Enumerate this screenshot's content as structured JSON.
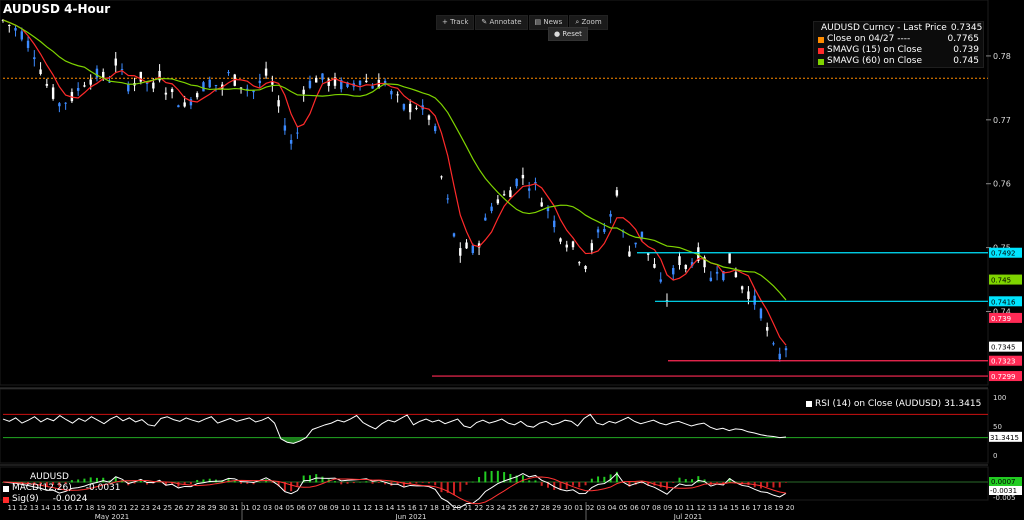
{
  "header": {
    "title": "AUDUSD 4-Hour"
  },
  "toolbar": {
    "track": "Track",
    "annotate": "Annotate",
    "news": "News",
    "zoom": "Zoom",
    "reset": "Reset"
  },
  "legend": [
    {
      "label": "AUDUSD Curncy - Last Price",
      "value": "0.7345",
      "color": "#ffffff"
    },
    {
      "label": "Close on 04/27 ----",
      "value": "0.7765",
      "color": "#ff8c00"
    },
    {
      "label": "SMAVG (15)  on Close",
      "value": "0.739",
      "color": "#ff2a2a"
    },
    {
      "label": "SMAVG (60)  on Close",
      "value": "0.745",
      "color": "#7fd400"
    }
  ],
  "rsi": {
    "label": "RSI (14)  on Close (AUDUSD)",
    "value": "31.3415",
    "ticks": [
      "100",
      "50",
      "0"
    ]
  },
  "macd": {
    "symbol": "AUDUSD",
    "macd_label": "MACD(12,26)",
    "macd_value": "-0.0031",
    "sig_label": "Sig(9)",
    "sig_value": "-0.0024",
    "tag_value": "-0.0031",
    "tag_value2": "0.0007",
    "tick_low": "-0.005"
  },
  "chart_data": {
    "type": "candlestick",
    "title": "AUDUSD 4-Hour",
    "ylim": [
      0.7285,
      0.7875
    ],
    "y_ticks": [
      "0.78",
      "0.77",
      "0.76",
      "0.75",
      "0.74"
    ],
    "x_ticks": [
      "11",
      "12",
      "13",
      "14",
      "15",
      "16",
      "17",
      "18",
      "19",
      "20",
      "21",
      "22",
      "23",
      "24",
      "25",
      "26",
      "27",
      "28",
      "29",
      "30",
      "31",
      "01",
      "02",
      "03",
      "04",
      "05",
      "06",
      "07",
      "08",
      "09",
      "10",
      "11",
      "12",
      "13",
      "14",
      "15",
      "16",
      "17",
      "18",
      "19",
      "20",
      "21",
      "22",
      "23",
      "24",
      "25",
      "26",
      "27",
      "28",
      "29",
      "30",
      "01",
      "02",
      "03",
      "04",
      "05",
      "06",
      "07",
      "08",
      "09",
      "10",
      "11",
      "12",
      "13",
      "14",
      "15",
      "16",
      "17",
      "18",
      "19",
      "20"
    ],
    "month_labels": [
      "May 2021",
      "Jun 2021",
      "Jul 2021"
    ],
    "last_price": 0.7345,
    "reference_close": 0.7765,
    "horizontal_levels": [
      {
        "value": 0.7492,
        "label": "0.7492",
        "color": "#00e5ff"
      },
      {
        "value": 0.7416,
        "label": "0.7416",
        "color": "#00e5ff"
      },
      {
        "value": 0.7323,
        "label": "0.7323",
        "color": "#ff2a55"
      },
      {
        "value": 0.7299,
        "label": "0.7299",
        "color": "#ff2a55"
      }
    ],
    "axis_tags": [
      {
        "value": 0.745,
        "label": "0.745",
        "color": "#7fd400"
      },
      {
        "value": 0.739,
        "label": "0.739",
        "color": "#ff2a55"
      },
      {
        "value": 0.7345,
        "label": "0.7345",
        "color": "#ffffff"
      }
    ],
    "price_path": [
      [
        0,
        0.7855
      ],
      [
        3,
        0.7835
      ],
      [
        5,
        0.7805
      ],
      [
        7,
        0.7755
      ],
      [
        9,
        0.7725
      ],
      [
        11,
        0.7735
      ],
      [
        13,
        0.776
      ],
      [
        15,
        0.777
      ],
      [
        17,
        0.7765
      ],
      [
        18,
        0.779
      ],
      [
        19,
        0.777
      ],
      [
        20,
        0.7755
      ],
      [
        22,
        0.7765
      ],
      [
        24,
        0.775
      ],
      [
        25,
        0.777
      ],
      [
        26,
        0.775
      ],
      [
        28,
        0.773
      ],
      [
        29,
        0.772
      ],
      [
        31,
        0.7745
      ],
      [
        33,
        0.776
      ],
      [
        35,
        0.775
      ],
      [
        36,
        0.777
      ],
      [
        38,
        0.7755
      ],
      [
        40,
        0.7745
      ],
      [
        42,
        0.777
      ],
      [
        43,
        0.7755
      ],
      [
        44,
        0.772
      ],
      [
        46,
        0.7665
      ],
      [
        47,
        0.768
      ],
      [
        48,
        0.775
      ],
      [
        50,
        0.7765
      ],
      [
        52,
        0.776
      ],
      [
        54,
        0.7755
      ],
      [
        55,
        0.775
      ],
      [
        57,
        0.7765
      ],
      [
        59,
        0.7755
      ],
      [
        61,
        0.776
      ],
      [
        62,
        0.774
      ],
      [
        63,
        0.773
      ],
      [
        64,
        0.7718
      ],
      [
        66,
        0.7722
      ],
      [
        68,
        0.7705
      ],
      [
        69,
        0.768
      ],
      [
        70,
        0.761
      ],
      [
        71,
        0.757
      ],
      [
        72,
        0.752
      ],
      [
        73,
        0.749
      ],
      [
        74,
        0.75
      ],
      [
        75,
        0.7495
      ],
      [
        76,
        0.751
      ],
      [
        77,
        0.754
      ],
      [
        78,
        0.7565
      ],
      [
        79,
        0.7575
      ],
      [
        80,
        0.758
      ],
      [
        81,
        0.759
      ],
      [
        82,
        0.7605
      ],
      [
        83,
        0.761
      ],
      [
        84,
        0.76
      ],
      [
        85,
        0.7595
      ],
      [
        86,
        0.7575
      ],
      [
        87,
        0.756
      ],
      [
        88,
        0.754
      ],
      [
        89,
        0.752
      ],
      [
        90,
        0.751
      ],
      [
        91,
        0.75
      ],
      [
        92,
        0.7485
      ],
      [
        93,
        0.7475
      ],
      [
        94,
        0.75
      ],
      [
        95,
        0.752
      ],
      [
        96,
        0.753
      ],
      [
        97,
        0.755
      ],
      [
        98,
        0.759
      ],
      [
        99,
        0.752
      ],
      [
        100,
        0.7495
      ],
      [
        101,
        0.751
      ],
      [
        102,
        0.752
      ],
      [
        103,
        0.749
      ],
      [
        104,
        0.747
      ],
      [
        105,
        0.744
      ],
      [
        106,
        0.742
      ],
      [
        107,
        0.746
      ],
      [
        108,
        0.748
      ],
      [
        109,
        0.747
      ],
      [
        110,
        0.748
      ],
      [
        111,
        0.749
      ],
      [
        112,
        0.7475
      ],
      [
        113,
        0.745
      ],
      [
        114,
        0.747
      ],
      [
        115,
        0.746
      ],
      [
        116,
        0.748
      ],
      [
        117,
        0.746
      ],
      [
        118,
        0.744
      ],
      [
        119,
        0.743
      ],
      [
        120,
        0.7415
      ],
      [
        121,
        0.74
      ],
      [
        122,
        0.737
      ],
      [
        123,
        0.734
      ],
      [
        124,
        0.733
      ],
      [
        125,
        0.7345
      ]
    ],
    "rsi_series": [
      62,
      58,
      64,
      55,
      60,
      66,
      57,
      63,
      59,
      68,
      61,
      55,
      63,
      58,
      66,
      60,
      54,
      62,
      67,
      59,
      64,
      57,
      61,
      52,
      50,
      63,
      66,
      61,
      58,
      64,
      60,
      57,
      62,
      66,
      55,
      59,
      63,
      58,
      61,
      64,
      57,
      60,
      65,
      55,
      28,
      22,
      20,
      24,
      30,
      44,
      48,
      52,
      55,
      60,
      57,
      62,
      68,
      56,
      50,
      45,
      54,
      60,
      57,
      63,
      69,
      52,
      58,
      62,
      57,
      60,
      54,
      58,
      62,
      50,
      47,
      56,
      60,
      55,
      58,
      62,
      55,
      52,
      58,
      50,
      48,
      55,
      58,
      52,
      55,
      60,
      58,
      50,
      63,
      70,
      55,
      52,
      58,
      55,
      60,
      65,
      58,
      54,
      57,
      60,
      55,
      52,
      56,
      58,
      54,
      50,
      53,
      55,
      48,
      44,
      46,
      42,
      45,
      44,
      40,
      38,
      35,
      33,
      32,
      30,
      31
    ]
  }
}
